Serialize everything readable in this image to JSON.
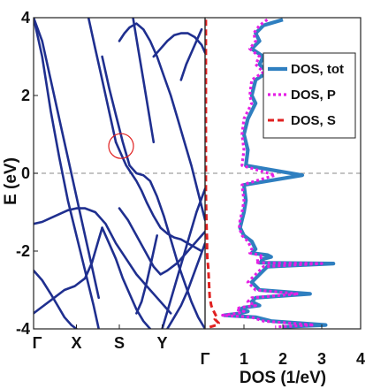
{
  "chart_data": [
    {
      "type": "line",
      "panel": "band-structure",
      "ylabel": "E (eV)",
      "ylim": [
        -4,
        4
      ],
      "yticks": [
        "-4",
        "-2",
        "0",
        "2",
        "4"
      ],
      "kpoint_labels": [
        "Γ",
        "X",
        "S",
        "Y",
        "Γ"
      ],
      "fermi_level": 0,
      "line_color": "#1f2f8f",
      "highlight_circle": {
        "near_k": "S",
        "energy": 0.7
      },
      "bands": [
        {
          "x": [
            0.0,
            0.05,
            0.1,
            0.15,
            0.2,
            0.25,
            0.3,
            0.35,
            0.38
          ],
          "y": [
            4.0,
            3.0,
            1.6,
            0.4,
            -0.7,
            -1.6,
            -2.5,
            -3.4,
            -4.0
          ]
        },
        {
          "x": [
            0.0,
            0.05,
            0.1,
            0.16,
            0.22,
            0.28,
            0.34,
            0.38
          ],
          "y": [
            4.0,
            3.4,
            2.4,
            1.2,
            0.0,
            -1.2,
            -2.4,
            -3.2
          ]
        },
        {
          "x": [
            0.0,
            0.05,
            0.1,
            0.15,
            0.2,
            0.25,
            0.3,
            0.36,
            0.42,
            0.48,
            0.54,
            0.6,
            0.66,
            0.72,
            0.8
          ],
          "y": [
            -1.3,
            -1.25,
            -1.15,
            -1.05,
            -0.95,
            -0.9,
            -0.9,
            -1.0,
            -1.3,
            -1.8,
            -2.2,
            -2.6,
            -2.9,
            -3.2,
            -3.6
          ]
        },
        {
          "x": [
            0.0,
            0.05,
            0.1,
            0.14,
            0.18,
            0.22,
            0.25
          ],
          "y": [
            -2.5,
            -2.75,
            -3.1,
            -3.4,
            -3.7,
            -3.9,
            -4.0
          ]
        },
        {
          "x": [
            0.0,
            0.06,
            0.12,
            0.18,
            0.24,
            0.3,
            0.34,
            0.38,
            0.4
          ],
          "y": [
            -3.6,
            -3.4,
            -3.2,
            -3.0,
            -2.9,
            -2.7,
            -2.3,
            -1.7,
            -1.4
          ]
        },
        {
          "x": [
            0.32,
            0.36,
            0.39,
            0.42,
            0.45,
            0.48
          ],
          "y": [
            4.0,
            3.2,
            2.6,
            2.0,
            1.4,
            0.8
          ]
        },
        {
          "x": [
            0.4,
            0.44,
            0.48,
            0.52,
            0.56,
            0.6,
            0.64,
            0.68,
            0.72,
            0.76,
            0.8,
            0.84,
            0.88,
            0.92,
            0.96,
            1.0
          ],
          "y": [
            3.0,
            2.2,
            1.5,
            0.8,
            0.2,
            0.0,
            -0.05,
            -0.2,
            -0.6,
            -1.1,
            -1.7,
            -2.3,
            -2.8,
            -3.3,
            -3.7,
            -4.0
          ]
        },
        {
          "x": [
            0.4,
            0.44,
            0.48,
            0.52,
            0.56,
            0.6,
            0.64,
            0.68
          ],
          "y": [
            -1.4,
            -1.8,
            -2.2,
            -2.7,
            -3.1,
            -3.5,
            -3.8,
            -4.0
          ]
        },
        {
          "x": [
            0.48,
            0.51,
            0.54,
            0.57,
            0.6,
            0.63,
            0.66,
            0.7,
            0.74,
            0.78,
            0.82,
            0.86,
            0.9,
            0.94,
            0.98
          ],
          "y": [
            0.8,
            0.5,
            0.2,
            0.0,
            -0.2,
            -0.45,
            -0.75,
            -1.1,
            -1.4,
            -1.55,
            -1.65,
            -1.7,
            -1.8,
            -1.9,
            -2.0
          ]
        },
        {
          "x": [
            0.5,
            0.53,
            0.56,
            0.6,
            0.64,
            0.68,
            0.72,
            0.76,
            0.8,
            0.84,
            0.88,
            0.92,
            0.96,
            1.0
          ],
          "y": [
            3.4,
            3.6,
            3.75,
            3.85,
            3.7,
            3.4,
            3.0,
            2.5,
            2.0,
            1.4,
            0.8,
            0.2,
            -0.5,
            -1.2
          ]
        },
        {
          "x": [
            0.5,
            0.55,
            0.6,
            0.65,
            0.7,
            0.74,
            0.78,
            0.84,
            0.9,
            0.96,
            1.0
          ],
          "y": [
            -0.9,
            -1.2,
            -1.6,
            -2.0,
            -2.4,
            -2.6,
            -2.5,
            -2.3,
            -2.0,
            -1.7,
            -1.5
          ]
        },
        {
          "x": [
            0.58,
            0.61,
            0.64,
            0.67,
            0.7
          ],
          "y": [
            4.0,
            3.2,
            2.4,
            1.6,
            0.8
          ]
        },
        {
          "x": [
            0.6,
            0.63,
            0.66,
            0.69,
            0.72
          ],
          "y": [
            -3.6,
            -3.3,
            -2.8,
            -2.2,
            -1.6
          ]
        },
        {
          "x": [
            0.7,
            0.74,
            0.78,
            0.82,
            0.86,
            0.9,
            0.94,
            0.98,
            1.0
          ],
          "y": [
            3.0,
            3.2,
            3.4,
            3.55,
            3.6,
            3.6,
            3.5,
            3.3,
            3.1
          ]
        },
        {
          "x": [
            0.75,
            0.79,
            0.83,
            0.87,
            0.91,
            0.95,
            1.0
          ],
          "y": [
            -4.0,
            -3.4,
            -2.8,
            -2.2,
            -1.6,
            -1.0,
            -0.4
          ]
        },
        {
          "x": [
            0.78,
            0.82,
            0.86,
            0.9,
            0.95,
            1.0
          ],
          "y": [
            -4.0,
            -3.7,
            -3.4,
            -3.0,
            -2.4,
            -1.8
          ]
        },
        {
          "x": [
            0.86,
            0.89,
            0.92,
            0.95,
            0.98
          ],
          "y": [
            2.4,
            2.8,
            3.1,
            3.4,
            3.7
          ]
        }
      ]
    },
    {
      "type": "line",
      "panel": "density-of-states",
      "xlabel": "DOS (1/eV)",
      "xlim": [
        0,
        4
      ],
      "xticks": [
        "Γ",
        "1",
        "2",
        "3",
        "4"
      ],
      "ylim": [
        -4,
        4
      ],
      "legend_position": "top-right",
      "series": [
        {
          "name": "DOS, tot",
          "color": "#2f7fc0",
          "x": [
            2.0,
            1.5,
            1.3,
            1.4,
            1.2,
            1.5,
            1.4,
            1.6,
            1.3,
            1.2,
            1.3,
            1.1,
            1.0,
            1.1,
            1.05,
            2.5,
            1.0,
            1.05,
            1.0,
            0.95,
            0.9,
            1.0,
            1.2,
            1.25,
            1.3,
            1.2,
            1.6,
            1.7,
            1.5,
            1.45,
            1.5,
            1.4,
            3.3,
            1.6,
            1.5,
            1.4,
            1.3,
            1.2,
            1.3,
            1.4,
            2.7,
            1.3,
            1.2,
            1.4,
            1.0,
            0.9,
            1.1,
            0.9,
            0.5,
            1.3,
            1.7,
            3.1,
            2.0
          ],
          "y": [
            3.95,
            3.8,
            3.6,
            3.4,
            3.2,
            3.0,
            2.8,
            2.6,
            2.4,
            2.0,
            1.8,
            1.4,
            1.0,
            0.6,
            0.2,
            -0.05,
            -0.3,
            -0.7,
            -1.0,
            -1.2,
            -1.4,
            -1.6,
            -1.75,
            -1.85,
            -1.95,
            -2.05,
            -2.1,
            -2.15,
            -2.2,
            -2.25,
            -2.28,
            -2.3,
            -2.32,
            -2.4,
            -2.5,
            -2.6,
            -2.7,
            -2.8,
            -2.9,
            -3.0,
            -3.1,
            -3.2,
            -3.3,
            -3.4,
            -3.45,
            -3.5,
            -3.55,
            -3.6,
            -3.65,
            -3.7,
            -3.8,
            -3.9,
            -3.95
          ]
        },
        {
          "name": "DOS, P",
          "color": "#e51fe5",
          "x": [
            1.6,
            1.4,
            1.25,
            1.3,
            1.15,
            1.4,
            1.3,
            1.5,
            1.2,
            1.15,
            1.2,
            1.0,
            0.95,
            1.0,
            0.95,
            1.8,
            0.95,
            1.0,
            0.95,
            0.9,
            0.88,
            0.95,
            1.1,
            1.15,
            1.2,
            1.15,
            1.4,
            1.5,
            1.35,
            1.35,
            1.4,
            1.35,
            3.0,
            1.5,
            1.4,
            1.3,
            1.2,
            1.1,
            1.2,
            1.3,
            2.4,
            1.2,
            1.1,
            1.3,
            0.9,
            0.8,
            1.0,
            0.85,
            0.45,
            1.2,
            1.5,
            2.8,
            1.8
          ],
          "y": [
            3.95,
            3.8,
            3.6,
            3.4,
            3.2,
            3.0,
            2.8,
            2.6,
            2.4,
            2.0,
            1.8,
            1.4,
            1.0,
            0.6,
            0.2,
            -0.05,
            -0.3,
            -0.7,
            -1.0,
            -1.2,
            -1.4,
            -1.6,
            -1.75,
            -1.85,
            -1.95,
            -2.05,
            -2.1,
            -2.15,
            -2.2,
            -2.25,
            -2.28,
            -2.3,
            -2.32,
            -2.4,
            -2.5,
            -2.6,
            -2.7,
            -2.8,
            -2.9,
            -3.0,
            -3.1,
            -3.2,
            -3.3,
            -3.4,
            -3.45,
            -3.5,
            -3.55,
            -3.6,
            -3.65,
            -3.7,
            -3.8,
            -3.9,
            -3.95
          ]
        },
        {
          "name": "DOS, S",
          "color": "#e02020",
          "x": [
            0.02,
            0.02,
            0.02,
            0.02,
            0.02,
            0.02,
            0.02,
            0.03,
            0.04,
            0.05,
            0.05,
            0.06,
            0.08,
            0.09,
            0.1,
            0.11,
            0.12,
            0.14,
            0.16,
            0.2,
            0.25,
            0.3,
            0.25,
            0.3,
            0.35,
            0.3,
            0.2,
            0.1
          ],
          "y": [
            3.95,
            3.0,
            2.0,
            1.0,
            0.5,
            0.0,
            -0.5,
            -1.0,
            -1.5,
            -1.7,
            -2.0,
            -2.2,
            -2.4,
            -2.6,
            -2.8,
            -3.0,
            -3.2,
            -3.3,
            -3.4,
            -3.5,
            -3.6,
            -3.7,
            -3.75,
            -3.8,
            -3.85,
            -3.9,
            -3.93,
            -3.96
          ]
        }
      ]
    }
  ]
}
